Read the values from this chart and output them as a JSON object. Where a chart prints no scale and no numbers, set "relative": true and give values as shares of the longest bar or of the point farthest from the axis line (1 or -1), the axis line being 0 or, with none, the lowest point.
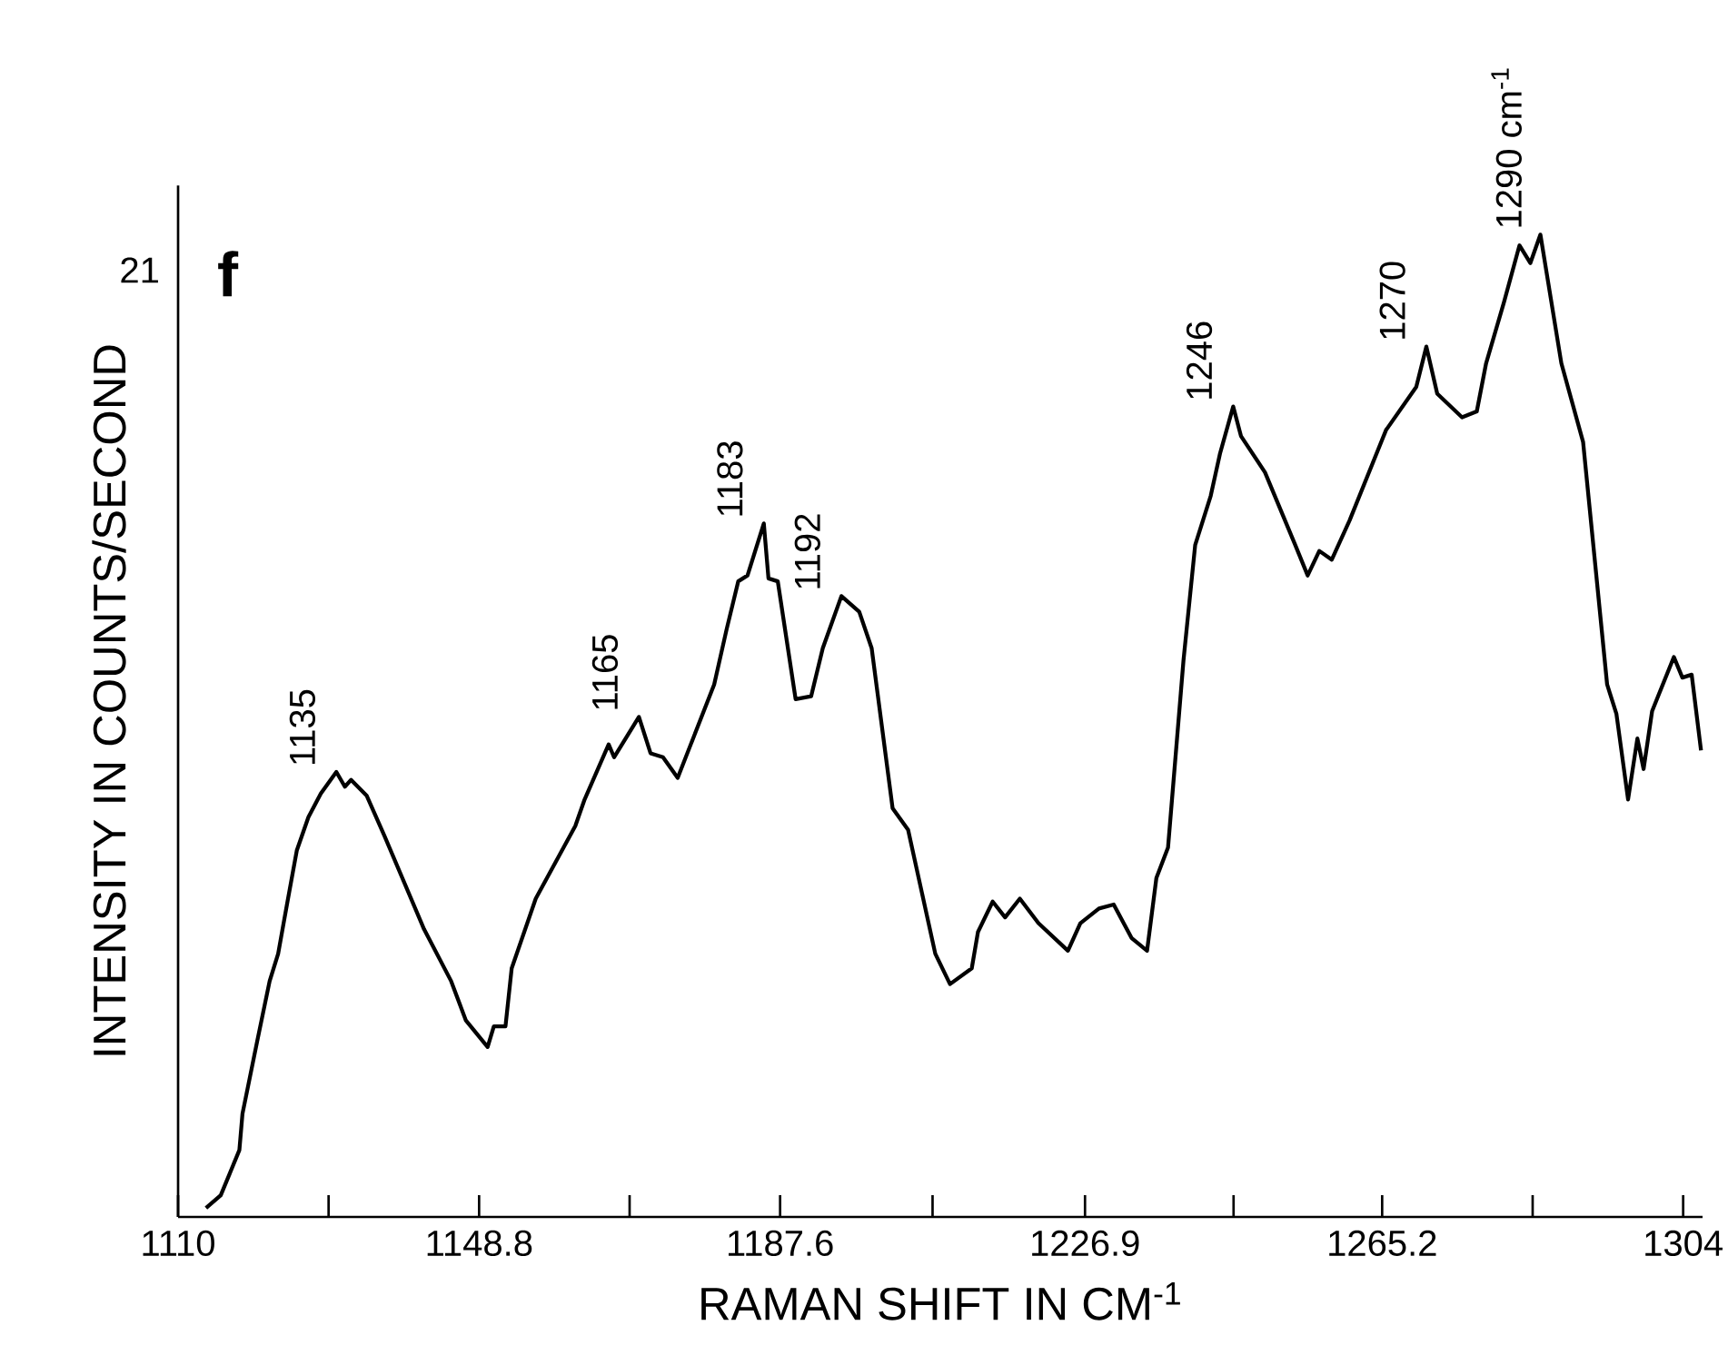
{
  "chart_data": {
    "type": "line",
    "relative": true,
    "xlabel": "RAMAN SHIFT IN CM$^{-1}$",
    "ylabel": "INTENSITY IN COUNTS/SECOND",
    "xlim": [
      1110,
      1306.5
    ],
    "xticks": [
      1110,
      {
        "value": 1129.4,
        "label": null
      },
      1148.8,
      {
        "value": 1168.2,
        "label": null
      },
      1187.6,
      {
        "value": 1207.25,
        "label": null
      },
      1226.9,
      {
        "value": 1246.05,
        "label": null
      },
      1265.2,
      {
        "value": 1284.6,
        "label": null
      },
      1304
    ],
    "x": [
      1113.6,
      1115.5,
      1117.9,
      1118.3,
      1120.2,
      1121.8,
      1122.9,
      1124.1,
      1125.3,
      1126.8,
      1128.4,
      1130.4,
      1131.5,
      1132.3,
      1134.3,
      1136.6,
      1141.7,
      1145.2,
      1147.1,
      1149.9,
      1150.7,
      1152.2,
      1153.0,
      1156.1,
      1161.2,
      1162.4,
      1165.5,
      1166.2,
      1169.4,
      1170.9,
      1172.5,
      1174.4,
      1179.1,
      1180.7,
      1182.2,
      1183.4,
      1185.5,
      1186.1,
      1187.3,
      1189.6,
      1191.6,
      1193.1,
      1195.5,
      1197.8,
      1199.4,
      1202.1,
      1204.1,
      1207.6,
      1209.5,
      1212.3,
      1213.1,
      1215.0,
      1216.6,
      1218.5,
      1220.9,
      1224.7,
      1226.3,
      1228.7,
      1230.6,
      1232.9,
      1234.9,
      1236.1,
      1237.6,
      1239.6,
      1241.1,
      1243.1,
      1244.3,
      1246.0,
      1247.0,
      1250.1,
      1254.0,
      1255.6,
      1257.1,
      1258.7,
      1261.0,
      1265.7,
      1269.6,
      1270.9,
      1272.3,
      1275.5,
      1277.4,
      1278.6,
      1280.9,
      1282.9,
      1284.3,
      1285.6,
      1288.3,
      1291.1,
      1294.2,
      1295.4,
      1296.9,
      1298.1,
      1298.9,
      1300.0,
      1302.8,
      1303.9,
      1305.1,
      1306.3
    ],
    "series": [
      {
        "color": "#000000",
        "values": [
          0.009,
          0.022,
          0.068,
          0.105,
          0.179,
          0.24,
          0.268,
          0.321,
          0.373,
          0.407,
          0.431,
          0.453,
          0.438,
          0.445,
          0.429,
          0.388,
          0.293,
          0.24,
          0.2,
          0.173,
          0.194,
          0.194,
          0.253,
          0.324,
          0.398,
          0.425,
          0.481,
          0.468,
          0.509,
          0.472,
          0.468,
          0.447,
          0.542,
          0.598,
          0.647,
          0.653,
          0.706,
          0.65,
          0.647,
          0.527,
          0.53,
          0.579,
          0.632,
          0.616,
          0.579,
          0.416,
          0.394,
          0.268,
          0.237,
          0.253,
          0.29,
          0.321,
          0.305,
          0.324,
          0.299,
          0.271,
          0.299,
          0.314,
          0.318,
          0.284,
          0.271,
          0.345,
          0.376,
          0.567,
          0.684,
          0.734,
          0.777,
          0.825,
          0.795,
          0.758,
          0.684,
          0.653,
          0.678,
          0.669,
          0.709,
          0.801,
          0.845,
          0.886,
          0.838,
          0.814,
          0.82,
          0.869,
          0.931,
          0.989,
          0.971,
          1,
          0.869,
          0.789,
          0.542,
          0.512,
          0.425,
          0.487,
          0.456,
          0.515,
          0.57,
          0.549,
          0.552,
          0.475
        ]
      }
    ],
    "annotations": [
      "21",
      "f",
      {
        "text": "1135",
        "x": 1130.4,
        "y": 0.453
      },
      {
        "text": "1165",
        "x": 1169.4,
        "y": 0.509
      },
      {
        "text": "1183",
        "x": 1185.5,
        "y": 0.706
      },
      {
        "text": "1192",
        "x": 1195.5,
        "y": 0.632
      },
      {
        "text": "1246",
        "x": 1246.0,
        "y": 0.825
      },
      {
        "text": "1270",
        "x": 1270.9,
        "y": 0.886
      },
      {
        "text": "1290 cm$^{-1}$",
        "x": 1285.6,
        "y": 1
      }
    ]
  }
}
